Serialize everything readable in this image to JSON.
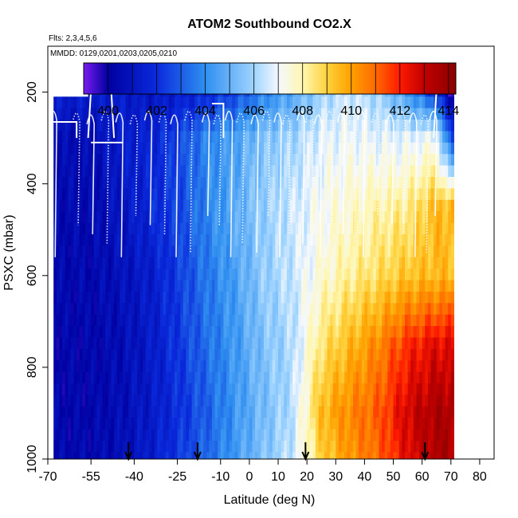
{
  "chart_data": {
    "type": "heatmap",
    "title": "ATOM2 Southbound CO2.X",
    "subtitle_flights": "Flts: 2,3,4,5,6",
    "subtitle_dates": "MMDD: 0129,0201,0203,0205,0210",
    "xlabel": "Latitude (deg N)",
    "ylabel": "PSXC (mbar)",
    "xlim": [
      -70,
      85
    ],
    "ylim": [
      1000,
      100
    ],
    "x_ticks": [
      -70,
      -55,
      -40,
      -25,
      -10,
      0,
      10,
      20,
      30,
      40,
      50,
      60,
      70,
      80
    ],
    "y_ticks": [
      200,
      400,
      600,
      800,
      1000
    ],
    "colorbar": {
      "range": [
        399,
        414.3
      ],
      "ticks": [
        400,
        402,
        404,
        406,
        408,
        410,
        412,
        414
      ],
      "stops": [
        {
          "value": 399,
          "color": "#7a1cf0"
        },
        {
          "value": 400,
          "color": "#0000a0"
        },
        {
          "value": 402,
          "color": "#0a2adc"
        },
        {
          "value": 404,
          "color": "#2f8ff0"
        },
        {
          "value": 406,
          "color": "#9fd4ff"
        },
        {
          "value": 407,
          "color": "#f4f8ff"
        },
        {
          "value": 408,
          "color": "#fff7b0"
        },
        {
          "value": 409,
          "color": "#ffd23c"
        },
        {
          "value": 410,
          "color": "#ffa000"
        },
        {
          "value": 411,
          "color": "#ff6a00"
        },
        {
          "value": 412,
          "color": "#ff1a00"
        },
        {
          "value": 413,
          "color": "#c00000"
        },
        {
          "value": 414.3,
          "color": "#8a0000"
        }
      ]
    },
    "lat_nodes": [
      -68,
      -55,
      -45,
      -35,
      -25,
      -15,
      -5,
      5,
      15,
      25,
      35,
      45,
      55,
      65,
      70
    ],
    "p_nodes": [
      190,
      300,
      450,
      600,
      750,
      900,
      1000
    ],
    "co2_grid": [
      [
        401.6,
        401.6,
        401.4,
        401.0,
        401.2,
        401.5,
        402.2,
        403.5,
        404.5,
        405.8,
        406.5,
        405.8,
        404.0,
        401.5,
        399.4
      ],
      [
        400.6,
        400.6,
        401.4,
        401.6,
        402.5,
        403.8,
        404.5,
        405.5,
        406.0,
        406.8,
        407.0,
        406.8,
        406.8,
        407.0,
        402.5
      ],
      [
        400.5,
        400.5,
        401.0,
        401.8,
        402.5,
        403.8,
        404.8,
        405.8,
        406.5,
        407.2,
        407.6,
        408.0,
        408.3,
        409.5,
        409.5
      ],
      [
        400.4,
        400.4,
        400.8,
        401.3,
        402.3,
        403.5,
        404.5,
        405.8,
        406.5,
        407.5,
        408.2,
        408.7,
        409.3,
        409.5,
        409.5
      ],
      [
        400.3,
        400.3,
        400.6,
        401.2,
        402.2,
        403.3,
        404.3,
        405.5,
        406.2,
        408.5,
        409.5,
        410.5,
        411.8,
        412.5,
        412.5
      ],
      [
        400.3,
        400.3,
        400.6,
        401.2,
        402.0,
        403.0,
        404.2,
        405.3,
        406.3,
        409.5,
        410.5,
        411.2,
        412.8,
        413.5,
        413.5
      ],
      [
        400.4,
        400.4,
        400.7,
        401.3,
        402.2,
        403.2,
        404.3,
        405.5,
        406.5,
        409.0,
        410.2,
        411.0,
        412.5,
        413.5,
        413.5
      ]
    ],
    "coverage": [
      {
        "lat_min": -56,
        "lat_max": 71,
        "p_min": 160,
        "p_max": 1000
      },
      {
        "lat_min": -68,
        "lat_max": -56,
        "p_min": 210,
        "p_max": 1000
      }
    ],
    "profile_lats": [
      -68,
      -60,
      -55,
      -50,
      -45,
      -40,
      -35,
      -30,
      -26,
      -21,
      -15,
      -11,
      -7,
      -3,
      2,
      6,
      10,
      13,
      18,
      21,
      24,
      28,
      32,
      36,
      39,
      44,
      49,
      53,
      57,
      61,
      64
    ],
    "arrow_lats": [
      -42,
      -18,
      19.5,
      61
    ]
  }
}
